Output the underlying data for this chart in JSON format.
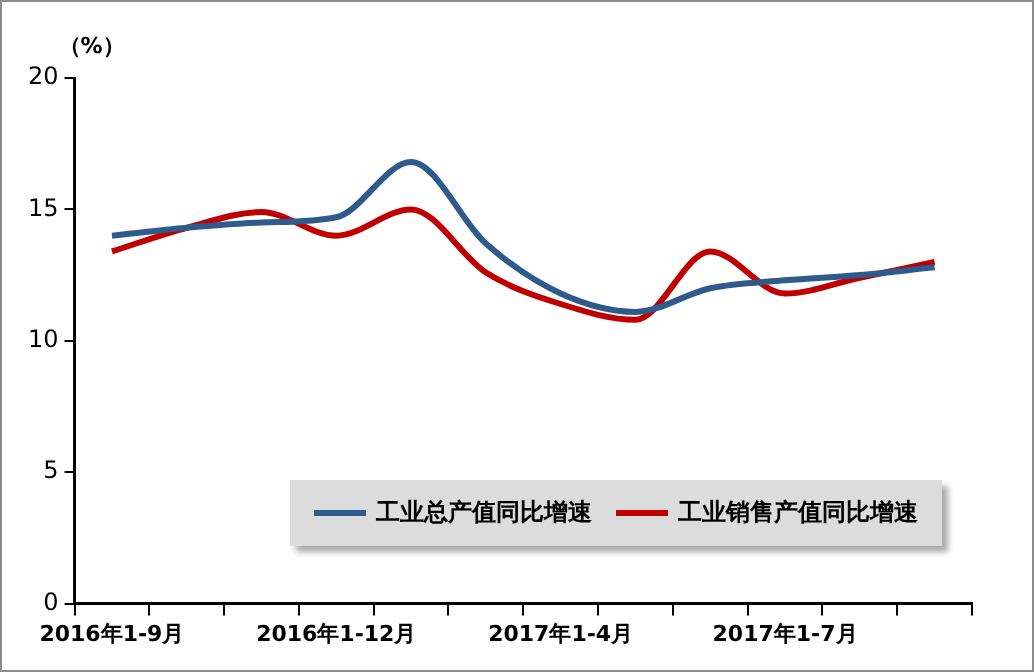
{
  "chart_data": {
    "type": "line",
    "ylabel": "（%）",
    "categories": [
      "2016年1-9月",
      null,
      null,
      "2016年1-12月",
      null,
      null,
      "2017年1-4月",
      null,
      null,
      "2017年1-7月",
      null,
      null
    ],
    "series": [
      {
        "name": "工业总产值同比增速",
        "color": "#2e5b8c",
        "values": [
          14.0,
          14.3,
          14.5,
          14.7,
          16.8,
          13.7,
          11.8,
          11.1,
          12.0,
          12.3,
          12.5,
          12.8
        ]
      },
      {
        "name": "工业销售产值同比增速",
        "color": "#c00000",
        "values": [
          13.4,
          14.3,
          14.9,
          14.0,
          15.0,
          12.6,
          11.4,
          10.8,
          13.4,
          11.8,
          12.4,
          13.0
        ]
      }
    ],
    "ylim": [
      0,
      20
    ],
    "yticks": [
      0,
      5,
      10,
      15,
      20
    ],
    "grid": false,
    "legend": "bottom right",
    "marker": "none",
    "line_style": "solid"
  }
}
